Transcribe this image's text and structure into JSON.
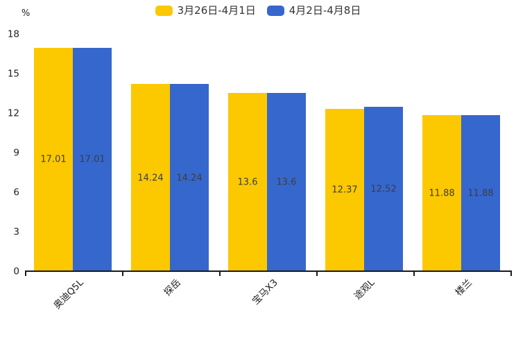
{
  "chart_data": {
    "type": "bar",
    "title": "",
    "categories": [
      "奥迪Q5L",
      "探岳",
      "宝马X3",
      "途观L",
      "楼兰"
    ],
    "series": [
      {
        "name": "3月26日-4月1日",
        "color": "#FCC800",
        "values": [
          17.01,
          14.24,
          13.6,
          12.37,
          11.88
        ]
      },
      {
        "name": "4月2日-4月8日",
        "color": "#3667CD",
        "values": [
          17.01,
          14.24,
          13.6,
          12.52,
          11.88
        ]
      }
    ],
    "xlabel": "",
    "ylabel": "%",
    "ylim": [
      0,
      18
    ],
    "yticks": [
      0,
      3,
      6,
      9,
      12,
      15,
      18
    ],
    "grid": false,
    "legend_position": "top-center",
    "value_label_position": "inside-middle",
    "colors": {
      "axis": "#1a1a1a",
      "tick_text": "#1f1f1f",
      "value_label": "#3d3d3d",
      "legend_text": "#333333",
      "background": "#ffffff"
    }
  }
}
